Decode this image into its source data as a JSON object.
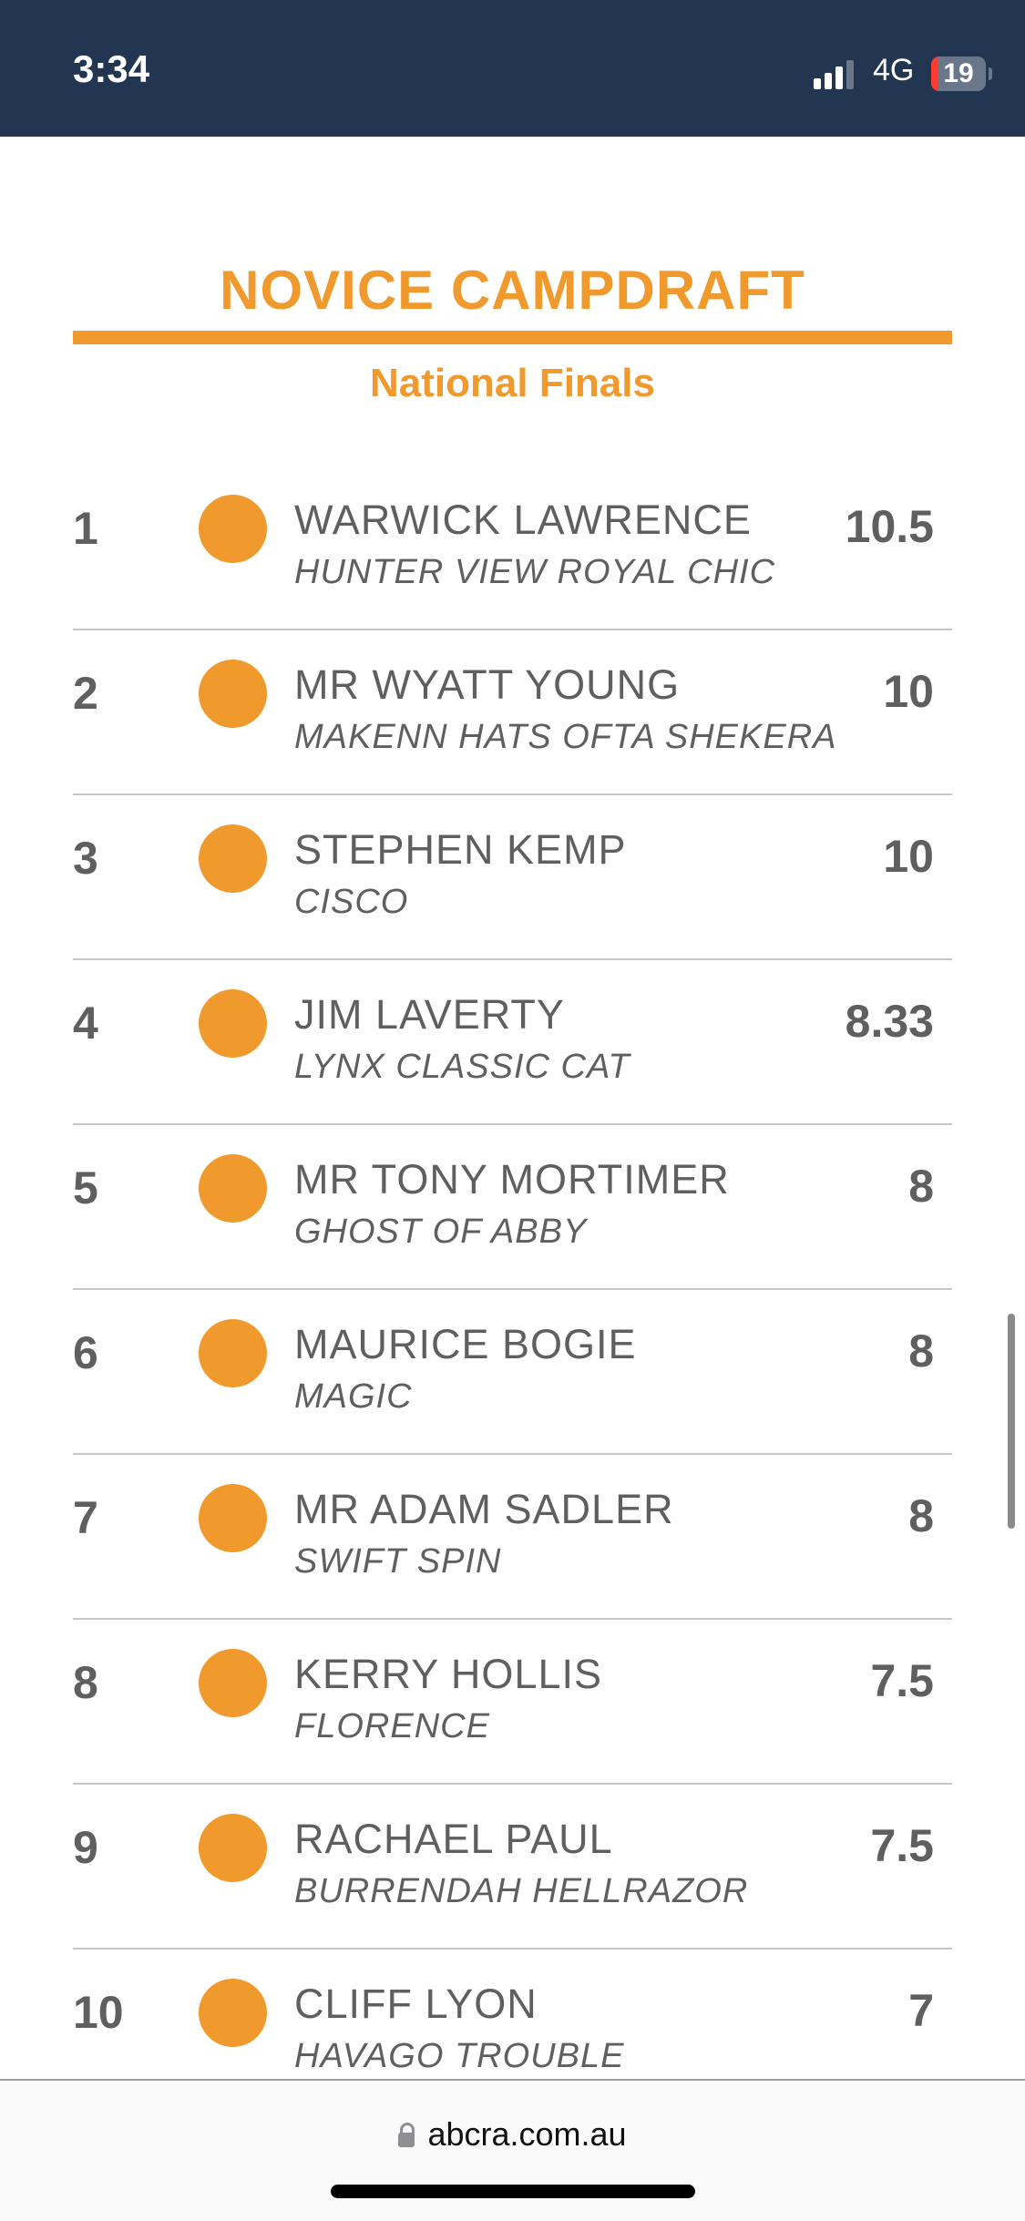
{
  "status_bar": {
    "time": "3:34",
    "network": "4G",
    "battery": "19",
    "signal_bars": 3,
    "battery_color": "#ff3b30"
  },
  "page": {
    "title": "NOVICE CAMPDRAFT",
    "subtitle": "National Finals",
    "accent_color": "#f09a2e"
  },
  "results": [
    {
      "rank": "1",
      "rider": "WARWICK LAWRENCE",
      "horse": "HUNTER VIEW ROYAL CHIC",
      "score": "10.5"
    },
    {
      "rank": "2",
      "rider": "MR WYATT YOUNG",
      "horse": "MAKENN HATS OFTA SHEKERA",
      "score": "10"
    },
    {
      "rank": "3",
      "rider": "STEPHEN KEMP",
      "horse": "CISCO",
      "score": "10"
    },
    {
      "rank": "4",
      "rider": "JIM LAVERTY",
      "horse": "LYNX CLASSIC CAT",
      "score": "8.33"
    },
    {
      "rank": "5",
      "rider": "MR TONY MORTIMER",
      "horse": "GHOST OF ABBY",
      "score": "8"
    },
    {
      "rank": "6",
      "rider": "MAURICE BOGIE",
      "horse": "MAGIC",
      "score": "8"
    },
    {
      "rank": "7",
      "rider": "MR ADAM SADLER",
      "horse": "SWIFT SPIN",
      "score": "8"
    },
    {
      "rank": "8",
      "rider": "KERRY HOLLIS",
      "horse": "FLORENCE",
      "score": "7.5"
    },
    {
      "rank": "9",
      "rider": "RACHAEL PAUL",
      "horse": "BURRENDAH HELLRAZOR",
      "score": "7.5"
    },
    {
      "rank": "10",
      "rider": "CLIFF LYON",
      "horse": "HAVAGO TROUBLE",
      "score": "7"
    }
  ],
  "browser": {
    "url": "abcra.com.au"
  }
}
